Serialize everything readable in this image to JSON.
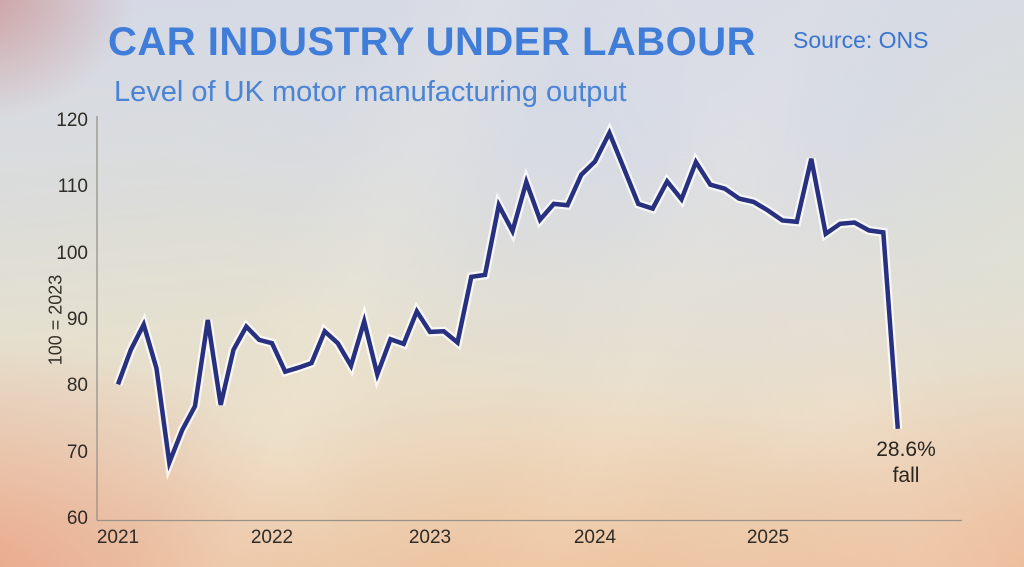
{
  "header": {
    "title": "CAR INDUSTRY UNDER LABOUR",
    "subtitle": "Level of UK motor manufacturing output",
    "source": "Source: ONS"
  },
  "chart_data": {
    "type": "line",
    "title": "CAR INDUSTRY UNDER LABOUR",
    "subtitle": "Level of UK motor manufacturing output",
    "source": "Source: ONS",
    "ylabel": "100 = 2023",
    "ylim": [
      60,
      120
    ],
    "yticks": [
      120,
      110,
      100,
      90,
      80,
      70,
      60
    ],
    "xticks": [
      "2021",
      "2022",
      "2023",
      "2024",
      "2025"
    ],
    "grid": false,
    "legend": "none",
    "line_color": "#273180",
    "annotation": {
      "line1": "28.6%",
      "line2": "fall",
      "attached_to": "last data point"
    },
    "series": [
      {
        "name": "UK motor manufacturing output index",
        "x_start": "2021-01",
        "frequency": "monthly",
        "values": [
          80.3,
          85.5,
          89.3,
          82.7,
          68.5,
          73.4,
          77.0,
          90.0,
          77.2,
          85.5,
          89.0,
          87.0,
          86.5,
          82.2,
          82.8,
          83.5,
          88.3,
          86.5,
          83.1,
          89.8,
          81.8,
          87.1,
          86.4,
          91.3,
          88.2,
          88.3,
          86.6,
          96.5,
          96.8,
          107.3,
          103.4,
          110.8,
          105.1,
          107.5,
          107.3,
          111.9,
          113.9,
          118.2,
          112.9,
          107.5,
          106.8,
          110.9,
          108.2,
          113.8,
          110.4,
          109.8,
          108.3,
          107.8,
          106.5,
          105.0,
          104.8,
          114.3,
          103.0,
          104.5,
          104.7,
          103.5,
          103.2,
          73.6
        ]
      }
    ]
  }
}
